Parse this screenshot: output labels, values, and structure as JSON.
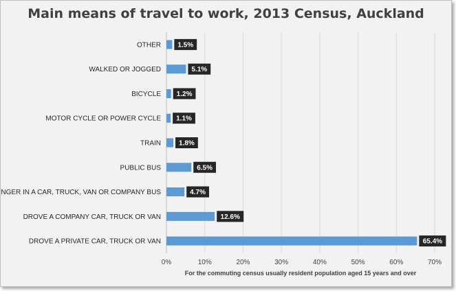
{
  "chart_data": {
    "type": "bar",
    "orientation": "horizontal",
    "title": "Main means of travel to work, 2013 Census, Auckland",
    "xlabel": "For the commuting  census usually resident population  aged 15 years and over",
    "ylabel": "",
    "xlim": [
      0,
      70
    ],
    "x_ticks": [
      "0%",
      "10%",
      "20%",
      "30%",
      "40%",
      "50%",
      "60%",
      "70%"
    ],
    "categories": [
      "OTHER",
      "WALKED OR JOGGED",
      "BICYCLE",
      "MOTOR CYCLE OR POWER CYCLE",
      "TRAIN",
      "PUBLIC BUS",
      "PASSENGER IN A CAR, TRUCK, VAN OR COMPANY BUS",
      "DROVE A COMPANY CAR, TRUCK OR VAN",
      "DROVE A PRIVATE CAR, TRUCK OR VAN"
    ],
    "values": [
      1.5,
      5.1,
      1.2,
      1.1,
      1.8,
      6.5,
      4.7,
      12.6,
      65.4
    ],
    "data_labels": [
      "1.5%",
      "5.1%",
      "1.2%",
      "1.1%",
      "1.8%",
      "6.5%",
      "4.7%",
      "12.6%",
      "65.4%"
    ],
    "grid": true,
    "legend": "none",
    "bar_color": "#5b9bd5",
    "label_box_color": "#262626",
    "background_color": "#f2f2f2"
  }
}
